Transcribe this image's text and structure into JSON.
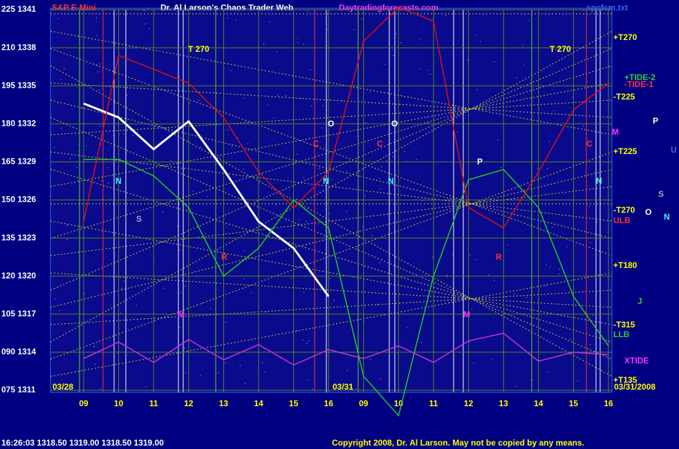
{
  "chart_data": {
    "type": "line",
    "title": "S&P E-Mini",
    "subtitle": "Dr. Al Larson's Chaos Trader Web",
    "site": "Daytradingforecasts.com",
    "file": "spcfcm.txt",
    "quote": "16:26:03  1318.50 1319.00 1318.50 1319.00",
    "copyright": "Copyright 2008, Dr. Al Larson. May not be copied by any means.",
    "dates": [
      "03/28",
      "03/31",
      "03/31/2008"
    ],
    "categories": [
      "09",
      "10",
      "11",
      "12",
      "13",
      "14",
      "15",
      "16",
      "09",
      "10",
      "11",
      "12",
      "13",
      "14",
      "15",
      "16"
    ],
    "ylim": [
      1311,
      1341
    ],
    "yticks": [
      {
        "value": 1341,
        "label": "225 1341"
      },
      {
        "value": 1338,
        "label": "210 1338"
      },
      {
        "value": 1335,
        "label": "195 1335"
      },
      {
        "value": 1332,
        "label": "180 1332"
      },
      {
        "value": 1329,
        "label": "165 1329"
      },
      {
        "value": 1326,
        "label": "150 1326"
      },
      {
        "value": 1323,
        "label": "135 1323"
      },
      {
        "value": 1320,
        "label": "120 1320"
      },
      {
        "value": 1317,
        "label": "105 1317"
      },
      {
        "value": 1314,
        "label": "090 1314"
      },
      {
        "value": 1311,
        "label": "075 1311"
      }
    ],
    "grid": true,
    "series": [
      {
        "color": "#ffffff",
        "values": [
          1333.6,
          1332.5,
          1330,
          1332.2,
          1328.4,
          1324.3,
          1322.2,
          1318.4,
          null,
          null,
          null,
          null,
          null,
          null,
          null,
          null
        ]
      },
      {
        "color": "#22cc22",
        "values": [
          1329.2,
          1329.2,
          1327.9,
          1325.4,
          1320,
          1322.2,
          1326,
          1323.8,
          1312.1,
          1309,
          1320,
          1327.6,
          1328.4,
          1325.4,
          1318.4,
          1314.5
        ]
      },
      {
        "color": "#dd1111",
        "values": [
          1324.3,
          1337.4,
          1336.3,
          1335.2,
          1332.5,
          1328.2,
          1325.4,
          1328.2,
          1338.5,
          1341.2,
          1340.1,
          1325.4,
          1323.8,
          1328.2,
          1333.1,
          1335.2
        ]
      },
      {
        "color": "#cc33cc",
        "values": [
          1313.5,
          1314.8,
          1313.2,
          1315,
          1313.4,
          1314.6,
          1313,
          1314.2,
          1313.5,
          1314.5,
          1313.2,
          1314.9,
          1315.5,
          1313.3,
          1314,
          1313.8
        ]
      }
    ],
    "annotations": [
      "T 270",
      "T 270",
      "+T270",
      "+TIDE-2",
      "-TIDE-1",
      "-T225",
      "+T225",
      "-T270",
      "ULB",
      "+T180",
      "-T315",
      "LLB",
      "XTIDE",
      "+T135",
      "N",
      "N",
      "N",
      "N",
      "N",
      "C",
      "C",
      "C",
      "S",
      "S",
      "R",
      "R",
      "M",
      "M",
      "M",
      "P",
      "P",
      "O",
      "O",
      "O",
      "J",
      "U"
    ]
  }
}
